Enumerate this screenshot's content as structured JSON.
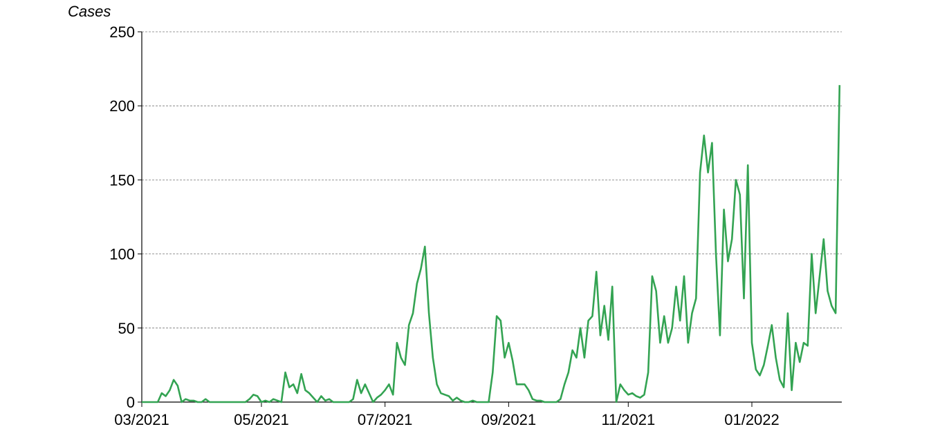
{
  "chart_data": {
    "type": "line",
    "y_label": "Cases",
    "categories": [
      "03/2021",
      null,
      null,
      null,
      null,
      null,
      null,
      null,
      null,
      null,
      null,
      null,
      null,
      null,
      null,
      null,
      null,
      null,
      null,
      null,
      null,
      null,
      null,
      null,
      null,
      null,
      null,
      null,
      null,
      null,
      "05/2021",
      null,
      null,
      null,
      null,
      null,
      null,
      null,
      null,
      null,
      null,
      null,
      null,
      null,
      null,
      null,
      null,
      null,
      null,
      null,
      null,
      null,
      null,
      null,
      null,
      null,
      null,
      null,
      null,
      null,
      null,
      "07/2021",
      null,
      null,
      null,
      null,
      null,
      null,
      null,
      null,
      null,
      null,
      null,
      null,
      null,
      null,
      null,
      null,
      null,
      null,
      null,
      null,
      null,
      null,
      null,
      null,
      null,
      null,
      null,
      null,
      null,
      null,
      "09/2021",
      null,
      null,
      null,
      null,
      null,
      null,
      null,
      null,
      null,
      null,
      null,
      null,
      null,
      null,
      null,
      null,
      null,
      null,
      null,
      null,
      null,
      null,
      null,
      null,
      null,
      null,
      null,
      null,
      null,
      "11/2021",
      null,
      null,
      null,
      null,
      null,
      null,
      null,
      null,
      null,
      null,
      null,
      null,
      null,
      null,
      null,
      null,
      null,
      null,
      null,
      null,
      null,
      null,
      null,
      null,
      null,
      null,
      null,
      null,
      null,
      null,
      "01/2022",
      null,
      null,
      null,
      null,
      null,
      null,
      null,
      null,
      null,
      null,
      null,
      null,
      null,
      null,
      null,
      null,
      null,
      null,
      null,
      null,
      null,
      null
    ],
    "series": [
      {
        "name": "Cases",
        "color": "#33a352",
        "values": [
          0,
          0,
          0,
          0,
          0,
          6,
          4,
          8,
          15,
          11,
          0,
          2,
          1,
          1,
          0,
          0,
          2,
          0,
          0,
          0,
          0,
          0,
          0,
          0,
          0,
          0,
          0,
          2,
          5,
          4,
          0,
          1,
          0,
          2,
          1,
          0,
          20,
          10,
          12,
          6,
          19,
          8,
          6,
          3,
          0,
          4,
          1,
          2,
          0,
          0,
          0,
          0,
          0,
          2,
          15,
          6,
          12,
          6,
          0,
          3,
          5,
          8,
          12,
          5,
          40,
          30,
          25,
          52,
          60,
          80,
          90,
          105,
          60,
          30,
          12,
          6,
          5,
          4,
          1,
          3,
          1,
          0,
          0,
          1,
          0,
          0,
          0,
          0,
          20,
          58,
          55,
          30,
          40,
          28,
          12,
          12,
          12,
          8,
          2,
          1,
          1,
          0,
          0,
          0,
          0,
          2,
          12,
          20,
          35,
          30,
          50,
          30,
          55,
          58,
          88,
          45,
          65,
          42,
          78,
          0,
          12,
          8,
          5,
          6,
          4,
          3,
          5,
          20,
          85,
          75,
          40,
          58,
          40,
          50,
          78,
          55,
          85,
          40,
          60,
          70,
          155,
          180,
          155,
          175,
          100,
          45,
          130,
          95,
          110,
          150,
          140,
          70,
          160,
          40,
          22,
          18,
          25,
          38,
          52,
          30,
          15,
          10,
          60,
          8,
          40,
          27,
          40,
          38,
          100,
          60,
          85,
          110,
          75,
          65,
          60,
          214
        ]
      }
    ],
    "ylim": [
      0,
      250
    ],
    "yticks": [
      0,
      50,
      100,
      150,
      200,
      250
    ],
    "grid": true
  }
}
